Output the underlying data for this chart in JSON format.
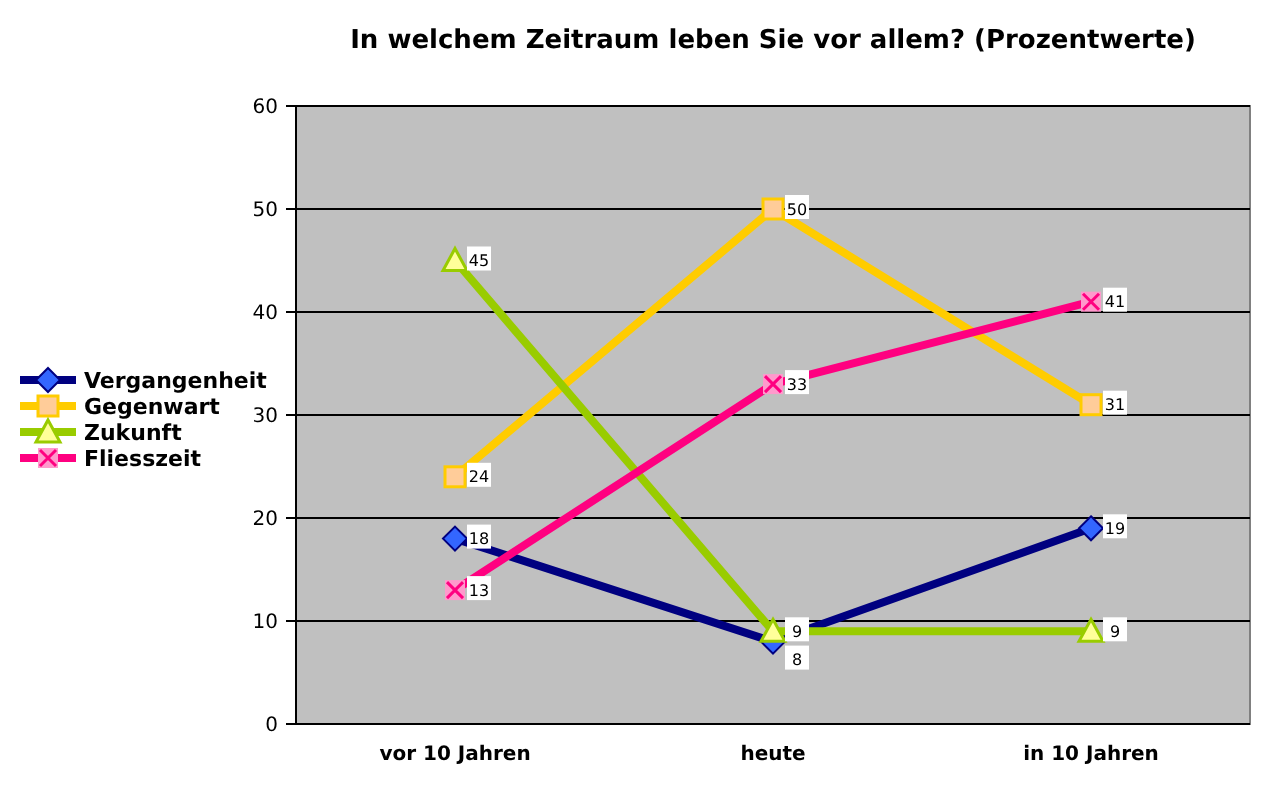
{
  "chart_data": {
    "type": "line",
    "title": "In welchem Zeitraum leben Sie vor allem? (Prozentwerte)",
    "categories": [
      "vor 10 Jahren",
      "heute",
      "in 10 Jahren"
    ],
    "series": [
      {
        "name": "Vergangenheit",
        "color": "#000080",
        "values": [
          18,
          8,
          19
        ],
        "marker": "diamond"
      },
      {
        "name": "Gegenwart",
        "color": "#ffcc00",
        "values": [
          24,
          50,
          31
        ],
        "marker": "square"
      },
      {
        "name": "Zukunft",
        "color": "#99cc00",
        "values": [
          45,
          9,
          9
        ],
        "marker": "triangle"
      },
      {
        "name": "Fliesszeit",
        "color": "#ff0080",
        "values": [
          13,
          33,
          41
        ],
        "marker": "cross"
      }
    ],
    "ylim": [
      0,
      60
    ],
    "yticks": [
      0,
      10,
      20,
      30,
      40,
      50,
      60
    ],
    "grid": "y",
    "legend": "left",
    "data_labels": true
  }
}
